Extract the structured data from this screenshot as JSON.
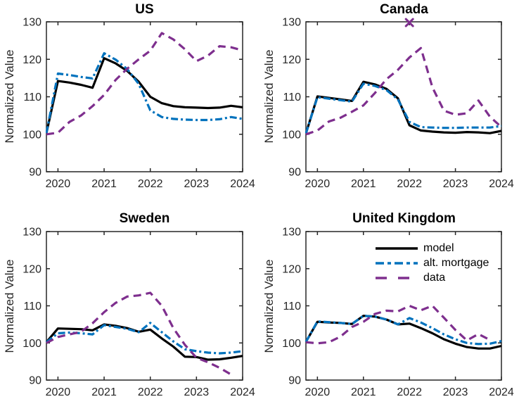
{
  "figure": {
    "ylabel": "Normalized Value"
  },
  "legend": {
    "position": "upper-right-of-united-kingdom-panel",
    "entries": [
      {
        "label": "model",
        "color": "#000000",
        "style": "solid",
        "sample_dash": ""
      },
      {
        "label": "alt. mortgage",
        "color": "#0072BD",
        "style": "dashdot",
        "sample_dash": "12 5 5 5"
      },
      {
        "label": "data",
        "color": "#7E2F8E",
        "style": "dashed",
        "sample_dash": "16 16"
      }
    ]
  },
  "chart_data": [
    {
      "type": "line",
      "title": "US",
      "ylabel": "Normalized Value",
      "xlim": [
        2019.75,
        2024
      ],
      "ylim": [
        90,
        130
      ],
      "xticks": [
        2020,
        2021,
        2022,
        2023,
        2024
      ],
      "yticks": [
        90,
        100,
        110,
        120,
        130
      ],
      "grid": false,
      "x": [
        2019.75,
        2020,
        2020.25,
        2020.5,
        2020.75,
        2021,
        2021.25,
        2021.5,
        2021.75,
        2022,
        2022.25,
        2022.5,
        2022.75,
        2023,
        2023.25,
        2023.5,
        2023.75,
        2024
      ],
      "series": [
        {
          "name": "model",
          "color": "#000000",
          "style": "solid",
          "values": [
            100.3,
            114.2,
            113.8,
            113.2,
            112.4,
            120.3,
            118.9,
            116.9,
            114.0,
            110.0,
            108.3,
            107.5,
            107.2,
            107.1,
            107.0,
            107.1,
            107.6,
            107.2
          ]
        },
        {
          "name": "alt. mortgage",
          "color": "#0072BD",
          "style": "dashdot",
          "values": [
            100.3,
            116.2,
            115.8,
            115.3,
            114.9,
            121.6,
            119.9,
            117.4,
            113.4,
            106.4,
            104.6,
            104.1,
            103.9,
            103.8,
            103.8,
            104.0,
            104.6,
            104.1
          ]
        },
        {
          "name": "data",
          "color": "#7E2F8E",
          "style": "dashed",
          "values": [
            100.0,
            100.4,
            103.3,
            105.0,
            107.5,
            110.5,
            114.5,
            117.5,
            120.0,
            122.3,
            127.0,
            125.3,
            122.7,
            119.5,
            121.0,
            123.5,
            123.2,
            122.4
          ]
        }
      ],
      "annotations": []
    },
    {
      "type": "line",
      "title": "Canada",
      "ylabel": "Normalized Value",
      "xlim": [
        2019.75,
        2024
      ],
      "ylim": [
        90,
        130
      ],
      "xticks": [
        2020,
        2021,
        2022,
        2023,
        2024
      ],
      "yticks": [
        90,
        100,
        110,
        120,
        130
      ],
      "grid": false,
      "x": [
        2019.75,
        2020,
        2020.25,
        2020.5,
        2020.75,
        2021,
        2021.25,
        2021.5,
        2021.75,
        2022,
        2022.25,
        2022.5,
        2022.75,
        2023,
        2023.25,
        2023.5,
        2023.75,
        2024
      ],
      "series": [
        {
          "name": "model",
          "color": "#000000",
          "style": "solid",
          "values": [
            100.2,
            110.1,
            109.7,
            109.3,
            108.9,
            114.0,
            113.3,
            112.1,
            109.6,
            102.4,
            101.0,
            100.7,
            100.5,
            100.4,
            100.6,
            100.5,
            100.3,
            100.9
          ]
        },
        {
          "name": "alt. mortgage",
          "color": "#0072BD",
          "style": "dashdot",
          "values": [
            100.2,
            109.9,
            109.5,
            109.1,
            108.7,
            113.5,
            112.9,
            111.8,
            109.3,
            103.3,
            101.9,
            101.8,
            101.7,
            101.7,
            101.8,
            101.8,
            101.8,
            102.2
          ]
        },
        {
          "name": "data",
          "color": "#7E2F8E",
          "style": "dashed",
          "values": [
            100.0,
            101.0,
            103.4,
            104.4,
            106.0,
            107.7,
            111.0,
            114.7,
            117.2,
            120.5,
            123.0,
            112.5,
            106.3,
            105.2,
            105.6,
            109.0,
            104.7,
            101.9
          ]
        }
      ],
      "annotations": [
        {
          "type": "x-marker",
          "x": 2022,
          "y": 129.8,
          "color": "#7E2F8E"
        }
      ]
    },
    {
      "type": "line",
      "title": "Sweden",
      "ylabel": "Normalized Value",
      "xlim": [
        2019.75,
        2024
      ],
      "ylim": [
        90,
        130
      ],
      "xticks": [
        2020,
        2021,
        2022,
        2023,
        2024
      ],
      "yticks": [
        90,
        100,
        110,
        120,
        130
      ],
      "grid": false,
      "x": [
        2019.75,
        2020,
        2020.25,
        2020.5,
        2020.75,
        2021,
        2021.25,
        2021.5,
        2021.75,
        2022,
        2022.25,
        2022.5,
        2022.75,
        2023,
        2023.25,
        2023.5,
        2023.75,
        2024
      ],
      "series": [
        {
          "name": "model",
          "color": "#000000",
          "style": "solid",
          "values": [
            100.2,
            103.9,
            103.8,
            103.7,
            103.4,
            105.0,
            104.6,
            104.0,
            103.0,
            103.6,
            101.2,
            99.0,
            96.3,
            96.2,
            95.5,
            95.6,
            96.0,
            96.5
          ]
        },
        {
          "name": "alt. mortgage",
          "color": "#0072BD",
          "style": "dashdot",
          "values": [
            100.2,
            102.6,
            102.8,
            102.6,
            102.3,
            104.8,
            104.3,
            103.8,
            102.9,
            105.4,
            102.9,
            100.4,
            98.3,
            97.8,
            97.4,
            97.2,
            97.4,
            97.8
          ]
        },
        {
          "name": "data",
          "color": "#7E2F8E",
          "style": "dashed",
          "values": [
            100.0,
            101.6,
            102.3,
            103.0,
            105.3,
            108.3,
            110.8,
            112.5,
            112.8,
            113.5,
            110.0,
            104.0,
            99.5,
            96.0,
            94.8,
            93.3,
            91.5,
            null
          ]
        }
      ],
      "annotations": []
    },
    {
      "type": "line",
      "title": "United Kingdom",
      "ylabel": "Normalized Value",
      "xlim": [
        2019.75,
        2024
      ],
      "ylim": [
        90,
        130
      ],
      "xticks": [
        2020,
        2021,
        2022,
        2023,
        2024
      ],
      "yticks": [
        90,
        100,
        110,
        120,
        130
      ],
      "grid": false,
      "x": [
        2019.75,
        2020,
        2020.25,
        2020.5,
        2020.75,
        2021,
        2021.25,
        2021.5,
        2021.75,
        2022,
        2022.25,
        2022.5,
        2022.75,
        2023,
        2023.25,
        2023.5,
        2023.75,
        2024
      ],
      "series": [
        {
          "name": "model",
          "color": "#000000",
          "style": "solid",
          "values": [
            100.3,
            105.7,
            105.5,
            105.4,
            105.1,
            107.3,
            107.1,
            106.3,
            105.0,
            105.2,
            104.0,
            102.6,
            101.0,
            99.8,
            98.9,
            98.5,
            98.5,
            99.2
          ]
        },
        {
          "name": "alt. mortgage",
          "color": "#0072BD",
          "style": "dashdot",
          "values": [
            100.3,
            105.8,
            105.6,
            105.4,
            105.1,
            107.3,
            107.1,
            106.3,
            105.0,
            106.7,
            105.5,
            104.0,
            102.3,
            101.0,
            100.0,
            99.7,
            99.8,
            100.5
          ]
        },
        {
          "name": "data",
          "color": "#7E2F8E",
          "style": "dashed",
          "values": [
            100.2,
            99.9,
            100.2,
            101.7,
            104.3,
            105.7,
            107.8,
            108.7,
            108.5,
            110.0,
            108.8,
            110.0,
            106.8,
            103.5,
            100.7,
            102.4,
            100.8,
            null
          ]
        }
      ],
      "annotations": []
    }
  ]
}
